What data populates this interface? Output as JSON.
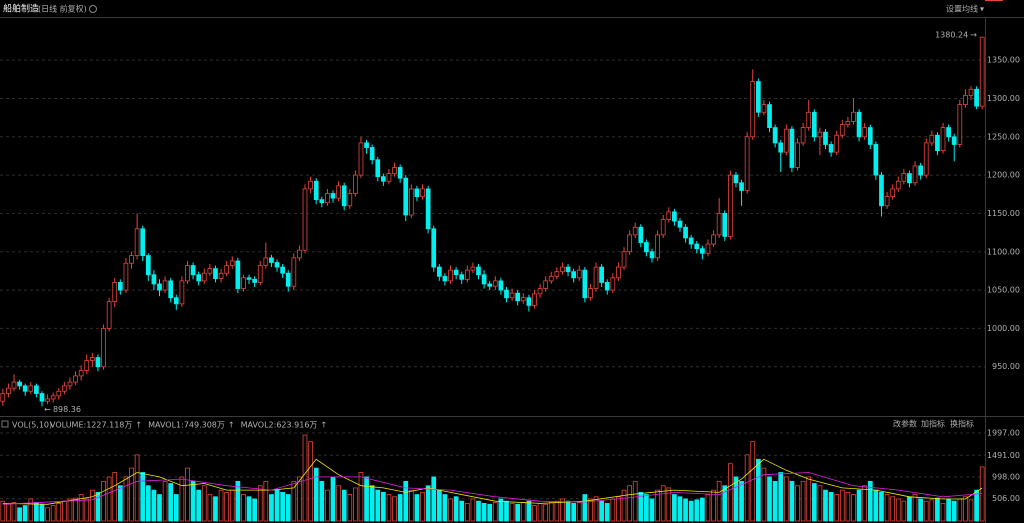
{
  "header": {
    "title": "船舶制造",
    "subtitle": "(日线 前复权)",
    "ma_setting": "设置均线"
  },
  "toolbar": [
    "改参数",
    "加指标",
    "换指标"
  ],
  "chart_data": {
    "type": "candlestick",
    "up_color": "#e8453c",
    "down_color": "#00f0f0",
    "ylim": [
      887,
      1405
    ],
    "yticks": [
      {
        "value": 950,
        "label": "950.00"
      },
      {
        "value": 1000,
        "label": "1000.00"
      },
      {
        "value": 1050,
        "label": "1050.00"
      },
      {
        "value": 1100,
        "label": "1100.00"
      },
      {
        "value": 1150,
        "label": "1150.00"
      },
      {
        "value": 1200,
        "label": "1200.00"
      },
      {
        "value": 1250,
        "label": "1250.00"
      },
      {
        "value": 1300,
        "label": "1300.00"
      },
      {
        "value": 1350,
        "label": "1350.00"
      }
    ],
    "grid": true,
    "ohlc": [
      [
        905,
        921,
        899,
        915
      ],
      [
        915,
        928,
        910,
        922
      ],
      [
        922,
        940,
        918,
        930
      ],
      [
        930,
        933,
        920,
        925
      ],
      [
        925,
        928,
        912,
        918
      ],
      [
        918,
        930,
        914,
        925
      ],
      [
        925,
        928,
        910,
        915
      ],
      [
        915,
        918,
        898.36,
        905
      ],
      [
        905,
        914,
        901,
        908
      ],
      [
        908,
        916,
        903,
        912
      ],
      [
        912,
        922,
        907,
        918
      ],
      [
        918,
        930,
        914,
        925
      ],
      [
        925,
        936,
        920,
        930
      ],
      [
        930,
        944,
        926,
        938
      ],
      [
        938,
        952,
        932,
        945
      ],
      [
        945,
        966,
        940,
        958
      ],
      [
        958,
        968,
        950,
        962
      ],
      [
        962,
        966,
        944,
        950
      ],
      [
        950,
        1005,
        946,
        1000
      ],
      [
        1000,
        1040,
        996,
        1035
      ],
      [
        1035,
        1066,
        1028,
        1060
      ],
      [
        1060,
        1064,
        1044,
        1050
      ],
      [
        1050,
        1092,
        1046,
        1085
      ],
      [
        1085,
        1100,
        1078,
        1095
      ],
      [
        1095,
        1150,
        1090,
        1130
      ],
      [
        1130,
        1134,
        1088,
        1095
      ],
      [
        1095,
        1098,
        1062,
        1070
      ],
      [
        1070,
        1076,
        1050,
        1058
      ],
      [
        1058,
        1064,
        1042,
        1050
      ],
      [
        1050,
        1068,
        1046,
        1062
      ],
      [
        1062,
        1066,
        1034,
        1040
      ],
      [
        1040,
        1044,
        1024,
        1032
      ],
      [
        1032,
        1068,
        1028,
        1062
      ],
      [
        1062,
        1088,
        1058,
        1082
      ],
      [
        1082,
        1086,
        1064,
        1070
      ],
      [
        1070,
        1074,
        1056,
        1062
      ],
      [
        1062,
        1078,
        1058,
        1072
      ],
      [
        1072,
        1084,
        1068,
        1078
      ],
      [
        1078,
        1082,
        1060,
        1065
      ],
      [
        1065,
        1078,
        1060,
        1072
      ],
      [
        1072,
        1088,
        1068,
        1082
      ],
      [
        1082,
        1094,
        1078,
        1088
      ],
      [
        1088,
        1092,
        1046,
        1052
      ],
      [
        1052,
        1070,
        1048,
        1066
      ],
      [
        1066,
        1070,
        1058,
        1064
      ],
      [
        1064,
        1068,
        1054,
        1060
      ],
      [
        1060,
        1088,
        1056,
        1082
      ],
      [
        1082,
        1112,
        1078,
        1092
      ],
      [
        1092,
        1096,
        1080,
        1086
      ],
      [
        1086,
        1090,
        1074,
        1080
      ],
      [
        1080,
        1084,
        1066,
        1072
      ],
      [
        1072,
        1076,
        1048,
        1055
      ],
      [
        1055,
        1098,
        1050,
        1092
      ],
      [
        1092,
        1108,
        1088,
        1102
      ],
      [
        1102,
        1188,
        1098,
        1182
      ],
      [
        1182,
        1198,
        1176,
        1192
      ],
      [
        1192,
        1196,
        1162,
        1168
      ],
      [
        1168,
        1172,
        1158,
        1164
      ],
      [
        1164,
        1182,
        1160,
        1176
      ],
      [
        1176,
        1180,
        1164,
        1170
      ],
      [
        1170,
        1192,
        1166,
        1186
      ],
      [
        1186,
        1190,
        1154,
        1160
      ],
      [
        1160,
        1182,
        1156,
        1176
      ],
      [
        1176,
        1206,
        1172,
        1200
      ],
      [
        1200,
        1250,
        1196,
        1242
      ],
      [
        1242,
        1246,
        1228,
        1236
      ],
      [
        1236,
        1240,
        1214,
        1220
      ],
      [
        1220,
        1224,
        1192,
        1198
      ],
      [
        1198,
        1202,
        1186,
        1192
      ],
      [
        1192,
        1208,
        1188,
        1202
      ],
      [
        1202,
        1216,
        1198,
        1210
      ],
      [
        1210,
        1214,
        1190,
        1196
      ],
      [
        1196,
        1200,
        1140,
        1148
      ],
      [
        1148,
        1188,
        1144,
        1182
      ],
      [
        1182,
        1186,
        1166,
        1172
      ],
      [
        1172,
        1188,
        1168,
        1182
      ],
      [
        1182,
        1186,
        1124,
        1130
      ],
      [
        1130,
        1134,
        1074,
        1080
      ],
      [
        1080,
        1084,
        1062,
        1068
      ],
      [
        1068,
        1072,
        1056,
        1062
      ],
      [
        1062,
        1082,
        1058,
        1076
      ],
      [
        1076,
        1080,
        1064,
        1070
      ],
      [
        1070,
        1074,
        1058,
        1064
      ],
      [
        1064,
        1082,
        1060,
        1076
      ],
      [
        1076,
        1086,
        1072,
        1080
      ],
      [
        1080,
        1084,
        1064,
        1070
      ],
      [
        1070,
        1076,
        1052,
        1058
      ],
      [
        1058,
        1062,
        1050,
        1055
      ],
      [
        1055,
        1068,
        1050,
        1062
      ],
      [
        1062,
        1066,
        1044,
        1050
      ],
      [
        1050,
        1054,
        1034,
        1040
      ],
      [
        1040,
        1052,
        1036,
        1046
      ],
      [
        1046,
        1050,
        1030,
        1036
      ],
      [
        1036,
        1046,
        1032,
        1040
      ],
      [
        1040,
        1044,
        1022,
        1030
      ],
      [
        1030,
        1050,
        1026,
        1045
      ],
      [
        1045,
        1058,
        1040,
        1052
      ],
      [
        1052,
        1068,
        1048,
        1062
      ],
      [
        1062,
        1074,
        1058,
        1068
      ],
      [
        1068,
        1080,
        1064,
        1074
      ],
      [
        1074,
        1086,
        1070,
        1080
      ],
      [
        1080,
        1084,
        1068,
        1074
      ],
      [
        1074,
        1078,
        1060,
        1066
      ],
      [
        1066,
        1082,
        1062,
        1076
      ],
      [
        1076,
        1080,
        1034,
        1040
      ],
      [
        1040,
        1058,
        1036,
        1052
      ],
      [
        1052,
        1086,
        1048,
        1080
      ],
      [
        1080,
        1084,
        1054,
        1060
      ],
      [
        1060,
        1064,
        1044,
        1050
      ],
      [
        1050,
        1072,
        1046,
        1066
      ],
      [
        1066,
        1086,
        1062,
        1080
      ],
      [
        1080,
        1106,
        1076,
        1100
      ],
      [
        1100,
        1128,
        1096,
        1122
      ],
      [
        1122,
        1138,
        1118,
        1132
      ],
      [
        1132,
        1136,
        1106,
        1112
      ],
      [
        1112,
        1116,
        1094,
        1100
      ],
      [
        1100,
        1104,
        1086,
        1092
      ],
      [
        1092,
        1128,
        1088,
        1122
      ],
      [
        1122,
        1148,
        1118,
        1142
      ],
      [
        1142,
        1158,
        1138,
        1152
      ],
      [
        1152,
        1156,
        1134,
        1140
      ],
      [
        1140,
        1144,
        1126,
        1132
      ],
      [
        1132,
        1136,
        1112,
        1118
      ],
      [
        1118,
        1122,
        1104,
        1110
      ],
      [
        1110,
        1114,
        1098,
        1104
      ],
      [
        1104,
        1108,
        1090,
        1098
      ],
      [
        1098,
        1116,
        1094,
        1110
      ],
      [
        1110,
        1128,
        1106,
        1122
      ],
      [
        1122,
        1170,
        1118,
        1150
      ],
      [
        1150,
        1154,
        1114,
        1120
      ],
      [
        1120,
        1206,
        1116,
        1200
      ],
      [
        1200,
        1204,
        1184,
        1190
      ],
      [
        1190,
        1194,
        1160,
        1180
      ],
      [
        1180,
        1256,
        1176,
        1250
      ],
      [
        1250,
        1338,
        1246,
        1322
      ],
      [
        1322,
        1326,
        1276,
        1282
      ],
      [
        1282,
        1298,
        1278,
        1292
      ],
      [
        1292,
        1296,
        1256,
        1262
      ],
      [
        1262,
        1266,
        1236,
        1242
      ],
      [
        1242,
        1246,
        1204,
        1230
      ],
      [
        1230,
        1266,
        1226,
        1260
      ],
      [
        1260,
        1264,
        1204,
        1210
      ],
      [
        1210,
        1248,
        1206,
        1242
      ],
      [
        1242,
        1268,
        1238,
        1262
      ],
      [
        1262,
        1298,
        1258,
        1282
      ],
      [
        1282,
        1286,
        1244,
        1250
      ],
      [
        1250,
        1262,
        1226,
        1256
      ],
      [
        1256,
        1260,
        1234,
        1240
      ],
      [
        1240,
        1244,
        1224,
        1230
      ],
      [
        1230,
        1258,
        1226,
        1252
      ],
      [
        1252,
        1272,
        1248,
        1266
      ],
      [
        1266,
        1276,
        1262,
        1270
      ],
      [
        1270,
        1300,
        1266,
        1282
      ],
      [
        1282,
        1286,
        1244,
        1250
      ],
      [
        1250,
        1268,
        1246,
        1262
      ],
      [
        1262,
        1266,
        1234,
        1240
      ],
      [
        1240,
        1244,
        1194,
        1200
      ],
      [
        1200,
        1204,
        1146,
        1160
      ],
      [
        1160,
        1178,
        1156,
        1172
      ],
      [
        1172,
        1188,
        1168,
        1182
      ],
      [
        1182,
        1198,
        1178,
        1192
      ],
      [
        1192,
        1208,
        1188,
        1202
      ],
      [
        1202,
        1206,
        1184,
        1190
      ],
      [
        1190,
        1218,
        1186,
        1212
      ],
      [
        1212,
        1216,
        1194,
        1200
      ],
      [
        1200,
        1248,
        1196,
        1242
      ],
      [
        1242,
        1258,
        1238,
        1252
      ],
      [
        1252,
        1256,
        1226,
        1232
      ],
      [
        1232,
        1268,
        1228,
        1262
      ],
      [
        1262,
        1266,
        1244,
        1250
      ],
      [
        1250,
        1254,
        1218,
        1240
      ],
      [
        1240,
        1298,
        1236,
        1292
      ],
      [
        1292,
        1312,
        1288,
        1304
      ],
      [
        1304,
        1316,
        1298,
        1312
      ],
      [
        1312,
        1316,
        1286,
        1290
      ],
      [
        1290,
        1380.24,
        1286,
        1380
      ]
    ],
    "volume": {
      "indicator": "VOL(5,10)",
      "label": "VOLUME:1227.118万",
      "ylim": [
        0,
        2110
      ],
      "yticks": [
        {
          "value": 506,
          "label": "506.00"
        },
        {
          "value": 998,
          "label": "998.00"
        },
        {
          "value": 1491,
          "label": "1491.00"
        },
        {
          "value": 1997,
          "label": "1997.00"
        }
      ],
      "values": [
        450,
        380,
        420,
        300,
        350,
        500,
        420,
        380,
        300,
        350,
        400,
        450,
        500,
        520,
        600,
        500,
        700,
        650,
        900,
        1000,
        1100,
        800,
        1000,
        1200,
        1500,
        1100,
        800,
        700,
        600,
        900,
        850,
        600,
        1000,
        1200,
        900,
        700,
        800,
        600,
        550,
        700,
        650,
        700,
        900,
        600,
        550,
        500,
        800,
        900,
        600,
        700,
        650,
        600,
        900,
        1000,
        1950,
        1800,
        1200,
        900,
        700,
        1000,
        800,
        700,
        600,
        750,
        1100,
        1000,
        800,
        700,
        650,
        600,
        550,
        600,
        900,
        700,
        600,
        650,
        800,
        1000,
        700,
        600,
        500,
        550,
        450,
        400,
        500,
        450,
        400,
        380,
        420,
        500,
        450,
        400,
        380,
        420,
        450,
        350,
        400,
        380,
        420,
        450,
        500,
        450,
        400,
        420,
        600,
        500,
        550,
        450,
        400,
        500,
        550,
        700,
        800,
        900,
        650,
        600,
        500,
        700,
        800,
        750,
        600,
        550,
        500,
        450,
        480,
        520,
        600,
        700,
        900,
        800,
        1300,
        1000,
        900,
        1500,
        1800,
        1400,
        1200,
        1000,
        900,
        1100,
        1000,
        900,
        800,
        900,
        1000,
        850,
        800,
        700,
        650,
        600,
        700,
        650,
        600,
        700,
        800,
        900,
        700,
        650,
        600,
        550,
        500,
        450,
        550,
        600,
        500,
        450,
        480,
        520,
        400,
        500,
        450,
        500,
        550,
        480,
        700,
        1227.118
      ],
      "series": [
        {
          "label": "MAVOL1:749.308万",
          "color": "#f0f000",
          "x": [
            0,
            8,
            16,
            20,
            24,
            28,
            32,
            36,
            40,
            44,
            48,
            52,
            56,
            60,
            64,
            68,
            72,
            76,
            80,
            88,
            96,
            104,
            112,
            120,
            128,
            132,
            136,
            140,
            144,
            150,
            156,
            162,
            168,
            172,
            175
          ],
          "values": [
            400,
            380,
            550,
            800,
            1100,
            1000,
            800,
            850,
            700,
            700,
            700,
            750,
            1400,
            1050,
            800,
            750,
            650,
            750,
            650,
            450,
            400,
            450,
            600,
            700,
            650,
            950,
            1400,
            1150,
            950,
            750,
            700,
            550,
            500,
            500,
            749.308
          ]
        },
        {
          "label": "MAVOL2:623.916万",
          "color": "#e020e0",
          "x": [
            0,
            16,
            24,
            32,
            40,
            48,
            56,
            64,
            72,
            80,
            88,
            96,
            104,
            112,
            120,
            128,
            136,
            144,
            152,
            160,
            168,
            175
          ],
          "values": [
            380,
            480,
            900,
            950,
            800,
            700,
            1000,
            1000,
            750,
            700,
            550,
            450,
            430,
            530,
            650,
            600,
            1050,
            1100,
            800,
            700,
            550,
            623.916
          ]
        }
      ]
    }
  }
}
